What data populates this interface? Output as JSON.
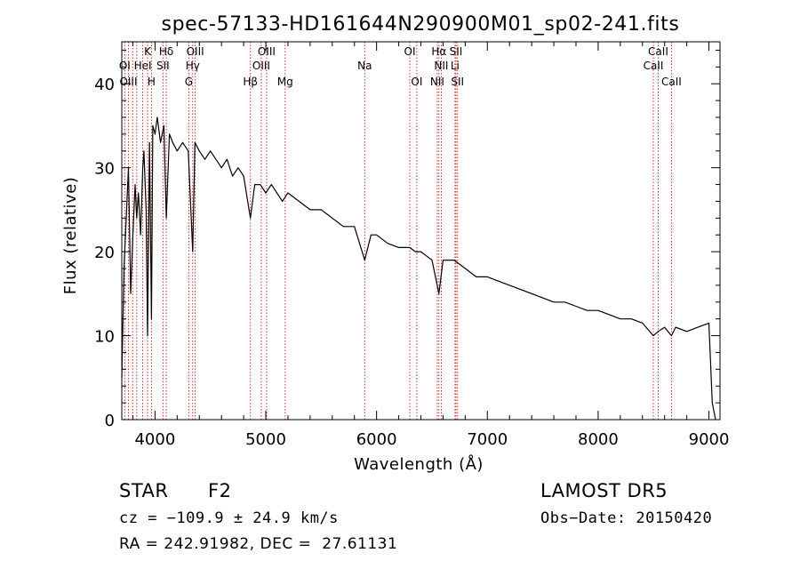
{
  "chart_data": {
    "type": "line",
    "title": "spec-57133-HD161644N290900M01_sp02-241.fits",
    "xlabel": "Wavelength (Å)",
    "ylabel": "Flux (relative)",
    "xlim": [
      3700,
      9100
    ],
    "ylim": [
      0,
      45
    ],
    "xticks": [
      4000,
      5000,
      6000,
      7000,
      8000,
      9000
    ],
    "yticks": [
      0,
      10,
      20,
      30,
      40
    ],
    "grid": false,
    "series": [
      {
        "x": [
          3700,
          3720,
          3740,
          3760,
          3780,
          3800,
          3820,
          3835,
          3850,
          3870,
          3889,
          3900,
          3920,
          3933,
          3950,
          3968,
          3980,
          4000,
          4020,
          4050,
          4080,
          4102,
          4130,
          4160,
          4200,
          4250,
          4300,
          4340,
          4360,
          4400,
          4450,
          4500,
          4550,
          4600,
          4650,
          4700,
          4750,
          4800,
          4861,
          4900,
          4950,
          5000,
          5050,
          5100,
          5150,
          5200,
          5300,
          5400,
          5500,
          5600,
          5700,
          5800,
          5893,
          5950,
          6000,
          6100,
          6200,
          6300,
          6350,
          6400,
          6450,
          6500,
          6563,
          6600,
          6650,
          6700,
          6800,
          6900,
          7000,
          7100,
          7200,
          7300,
          7400,
          7500,
          7600,
          7700,
          7800,
          7900,
          8000,
          8100,
          8200,
          8300,
          8400,
          8498,
          8542,
          8600,
          8662,
          8700,
          8800,
          8900,
          9000,
          9030,
          9060
        ],
        "y": [
          5,
          18,
          24,
          30,
          15,
          22,
          28,
          24,
          27,
          22,
          30,
          32,
          25,
          10,
          33,
          12,
          35,
          34,
          36,
          33,
          35,
          24,
          34,
          33,
          32,
          33,
          32,
          20,
          33,
          32,
          31,
          32,
          31,
          30,
          31,
          29,
          30,
          29,
          24,
          28,
          28,
          27,
          28,
          27,
          26,
          27,
          26,
          25,
          25,
          24,
          23,
          23,
          19,
          22,
          22,
          21,
          20.5,
          20.5,
          20,
          20,
          19.5,
          19,
          15,
          19,
          19,
          19,
          18,
          17,
          17,
          16.5,
          16,
          15.5,
          15,
          14.5,
          14,
          14,
          13.5,
          13,
          13,
          12.5,
          12,
          12,
          11.5,
          10,
          10.5,
          11,
          10,
          11,
          10.5,
          11,
          11.5,
          2,
          0
        ]
      }
    ],
    "line_labels": [
      {
        "label": "Hδ",
        "wave": 4102,
        "row": 1
      },
      {
        "label": "OI",
        "wave": 3727,
        "row": 2
      },
      {
        "label": "OIII",
        "wave": 3760,
        "row": 3
      },
      {
        "label": "K",
        "wave": 3933,
        "row": 1
      },
      {
        "label": "HeI",
        "wave": 3889,
        "row": 2
      },
      {
        "label": "H",
        "wave": 3968,
        "row": 3
      },
      {
        "label": "Hδ",
        "wave": 4102,
        "row": 1
      },
      {
        "label": "SII",
        "wave": 4072,
        "row": 2
      },
      {
        "label": "OIII",
        "wave": 4363,
        "row": 1
      },
      {
        "label": "Hγ",
        "wave": 4340,
        "row": 2
      },
      {
        "label": "G",
        "wave": 4305,
        "row": 3
      },
      {
        "label": "Hβ",
        "wave": 4861,
        "row": 3
      },
      {
        "label": "OIII",
        "wave": 5007,
        "row": 1
      },
      {
        "label": "OIII",
        "wave": 4959,
        "row": 2
      },
      {
        "label": "Mg",
        "wave": 5175,
        "row": 3
      },
      {
        "label": "Na",
        "wave": 5893,
        "row": 2
      },
      {
        "label": "OI",
        "wave": 6300,
        "row": 1
      },
      {
        "label": "OI",
        "wave": 6363,
        "row": 3
      },
      {
        "label": "Hα",
        "wave": 6563,
        "row": 1
      },
      {
        "label": "NII",
        "wave": 6584,
        "row": 2
      },
      {
        "label": "NII",
        "wave": 6548,
        "row": 3
      },
      {
        "label": "SII",
        "wave": 6717,
        "row": 1
      },
      {
        "label": "Li",
        "wave": 6708,
        "row": 2
      },
      {
        "label": "SII",
        "wave": 6731,
        "row": 3
      },
      {
        "label": "CaII",
        "wave": 8542,
        "row": 1
      },
      {
        "label": "CaII",
        "wave": 8498,
        "row": 2
      },
      {
        "label": "CaII",
        "wave": 8662,
        "row": 3
      }
    ],
    "line_waves": [
      3727,
      3760,
      3798,
      3835,
      3889,
      3933,
      3968,
      4072,
      4102,
      4305,
      4340,
      4363,
      4861,
      4959,
      5007,
      5175,
      5893,
      6300,
      6363,
      6548,
      6563,
      6584,
      6708,
      6717,
      6731,
      8498,
      8542,
      8662
    ]
  },
  "info": {
    "class": "STAR",
    "subclass": "F2",
    "survey": "LAMOST DR5",
    "cz": "cz = −109.9 ± 24.9 km/s",
    "obs_date": "Obs−Date: 20150420",
    "coords": "RA = 242.91982, DEC =  27.61131"
  },
  "colors": {
    "line_marker": "#c81e1e",
    "spectrum": "#000000",
    "axes": "#000000"
  }
}
